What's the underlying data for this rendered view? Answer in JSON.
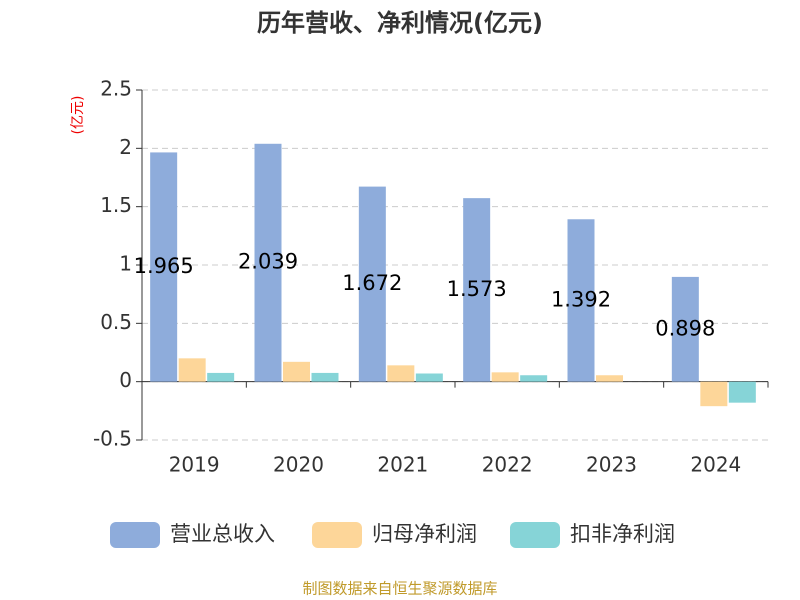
{
  "chart_data": {
    "type": "bar",
    "title": "历年营收、净利情况(亿元)",
    "y_label": "(亿元)",
    "categories": [
      "2019",
      "2020",
      "2021",
      "2022",
      "2023",
      "2024"
    ],
    "series": [
      {
        "name": "营业总收入",
        "color": "#8eacdb",
        "values": [
          1.965,
          2.039,
          1.672,
          1.573,
          1.392,
          0.898
        ],
        "labels": true
      },
      {
        "name": "归母净利润",
        "color": "#fdd699",
        "values": [
          0.2,
          0.17,
          0.14,
          0.08,
          0.055,
          -0.21
        ]
      },
      {
        "name": "扣非净利润",
        "color": "#86d4d7",
        "values": [
          0.075,
          0.075,
          0.07,
          0.055,
          0,
          -0.18
        ]
      }
    ],
    "ylim": [
      -0.5,
      2.5
    ],
    "yticks": [
      -0.5,
      0,
      0.5,
      1,
      1.5,
      2,
      2.5
    ],
    "grid": true,
    "source": "制图数据来自恒生聚源数据库"
  }
}
